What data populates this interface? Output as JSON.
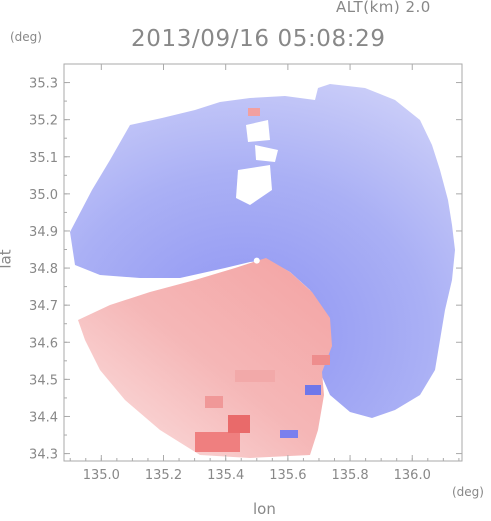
{
  "header": {
    "altitude_label": "ALT(km) 2.0",
    "timestamp": "2013/09/16 05:08:29"
  },
  "chart_data": {
    "type": "heatmap",
    "title": "2013/09/16 05:08:29",
    "subtitle": "ALT(km) 2.0",
    "xlabel": "lon",
    "ylabel": "lat",
    "x_unit": "(deg)",
    "y_unit": "(deg)",
    "xlim": [
      134.88,
      136.16
    ],
    "ylim": [
      34.28,
      35.35
    ],
    "x_ticks": [
      135.0,
      135.2,
      135.4,
      135.6,
      135.8,
      136.0
    ],
    "x_tick_labels": [
      "135.0",
      "135.2",
      "135.4",
      "135.6",
      "135.8",
      "136.0"
    ],
    "y_ticks": [
      34.3,
      34.4,
      34.5,
      34.6,
      34.7,
      34.8,
      34.9,
      35.0,
      35.1,
      35.2,
      35.3
    ],
    "y_tick_labels": [
      "34.3",
      "34.4",
      "34.5",
      "34.6",
      "34.7",
      "34.8",
      "34.9",
      "35.0",
      "35.1",
      "35.2",
      "35.3"
    ],
    "radar_center": {
      "lon": 135.5,
      "lat": 34.82
    },
    "grid": false,
    "colors": {
      "approaching": "#7f86f0",
      "receding": "#f08c8c",
      "neutral": "#ffffff",
      "axis": "#aaaaaa"
    }
  }
}
